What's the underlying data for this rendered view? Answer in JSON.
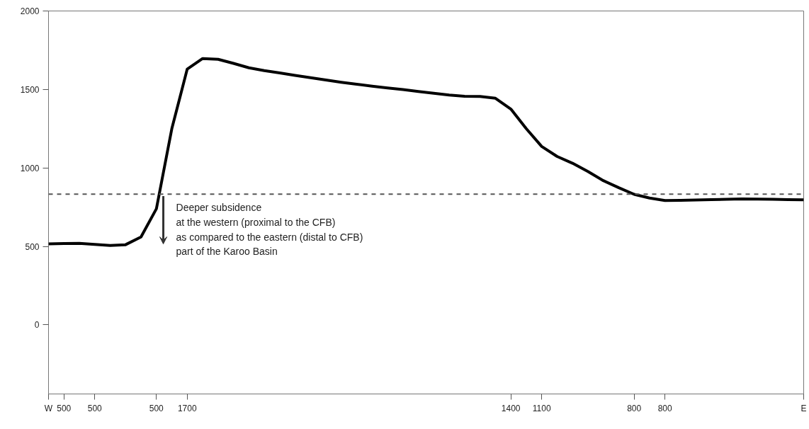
{
  "chart_data": {
    "type": "line",
    "categories": [
      "W",
      "500",
      null,
      "500",
      null,
      null,
      null,
      "500",
      null,
      "1700",
      null,
      null,
      null,
      null,
      null,
      null,
      null,
      null,
      null,
      null,
      null,
      null,
      null,
      null,
      null,
      null,
      null,
      null,
      null,
      null,
      "1400",
      null,
      "1100",
      null,
      null,
      null,
      null,
      null,
      "800",
      null,
      "800",
      null,
      null,
      null,
      null,
      null,
      null,
      null,
      null,
      "E"
    ],
    "series": [
      {
        "color": "#000000",
        "values": [
          516,
          518,
          520,
          513,
          506,
          511,
          560,
          740,
          1250,
          1630,
          1697,
          1692,
          1666,
          1638,
          1620,
          1605,
          1590,
          1575,
          1560,
          1546,
          1533,
          1521,
          1510,
          1499,
          1487,
          1476,
          1464,
          1457,
          1455,
          1444,
          1375,
          1250,
          1137,
          1073,
          1030,
          977,
          919,
          874,
          832,
          808,
          792,
          794,
          796,
          798,
          800,
          802,
          801,
          800,
          798,
          797
        ]
      }
    ],
    "ylim": [
      -440,
      2000
    ],
    "yticks": [
      0,
      500,
      1000,
      1500,
      2000
    ],
    "grid": false,
    "marker": "none",
    "line_style": "solid",
    "ref_lines": [
      {
        "axis": "y",
        "value": 833,
        "color": "#555555",
        "line_style": "dashed"
      }
    ],
    "annotations": [
      "Deeper subsidence\nat the western (proximal to the CFB)\nas compared to the eastern (distal to CFB)\npart of the Karoo Basin"
    ]
  }
}
